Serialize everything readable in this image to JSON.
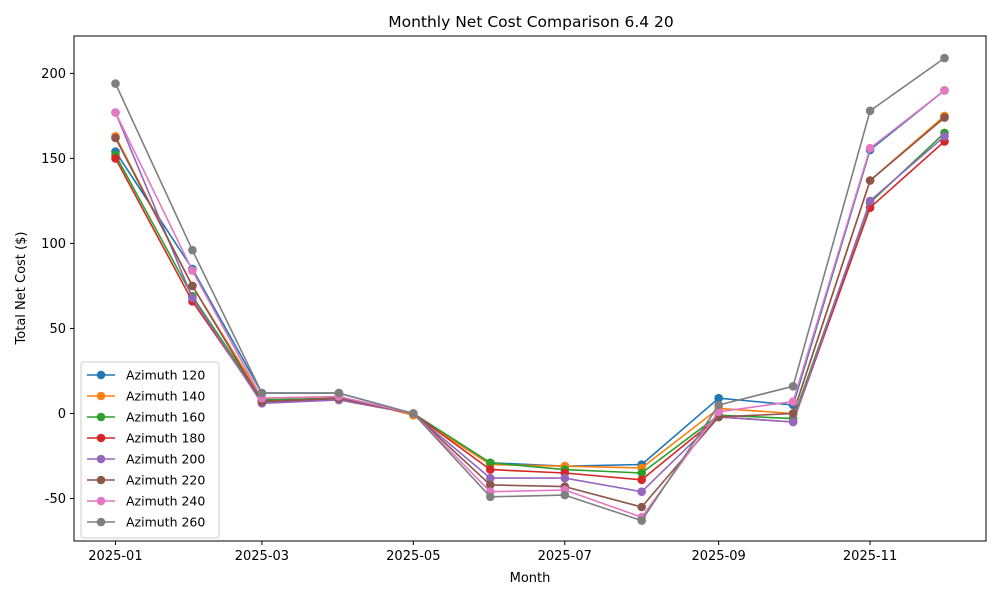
{
  "chart_data": {
    "type": "line",
    "title": "Monthly Net Cost Comparison 6.4 20",
    "xlabel": "Month",
    "ylabel": "Total Net Cost ($)",
    "x": [
      "2025-01",
      "2025-02",
      "2025-03",
      "2025-04",
      "2025-05",
      "2025-06",
      "2025-07",
      "2025-08",
      "2025-09",
      "2025-10",
      "2025-11",
      "2025-12"
    ],
    "x_tick_labels": [
      "2025-01",
      "2025-03",
      "2025-05",
      "2025-07",
      "2025-09",
      "2025-11"
    ],
    "y_ticks": [
      -50,
      0,
      50,
      100,
      150,
      200
    ],
    "ylim": [
      -75,
      222
    ],
    "grid": false,
    "legend_position": "lower-left",
    "marker": "circle",
    "series": [
      {
        "name": "Azimuth 120",
        "color": "#1f77b4",
        "values": [
          154,
          85,
          12,
          12,
          0,
          -29,
          -31,
          -30,
          9,
          5,
          155,
          190
        ]
      },
      {
        "name": "Azimuth 140",
        "color": "#ff7f0e",
        "values": [
          163,
          75,
          9,
          10,
          -1,
          -30,
          -31,
          -32,
          3,
          0,
          137,
          175
        ]
      },
      {
        "name": "Azimuth 160",
        "color": "#2ca02c",
        "values": [
          152,
          69,
          8,
          9,
          0,
          -29,
          -33,
          -35,
          -1,
          -3,
          124,
          165
        ]
      },
      {
        "name": "Azimuth 180",
        "color": "#d62728",
        "values": [
          150,
          66,
          7,
          8,
          0,
          -33,
          -35,
          -39,
          -2,
          -5,
          121,
          160
        ]
      },
      {
        "name": "Azimuth 200",
        "color": "#9467bd",
        "values": [
          177,
          68,
          6,
          8,
          0,
          -38,
          -38,
          -46,
          -2,
          -5,
          125,
          163
        ]
      },
      {
        "name": "Azimuth 220",
        "color": "#8c564b",
        "values": [
          162,
          75,
          7,
          9,
          0,
          -42,
          -43,
          -55,
          -2,
          0,
          137,
          174
        ]
      },
      {
        "name": "Azimuth 240",
        "color": "#e377c2",
        "values": [
          177,
          84,
          9,
          10,
          0,
          -46,
          -45,
          -61,
          1,
          7,
          156,
          190
        ]
      },
      {
        "name": "Azimuth 260",
        "color": "#7f7f7f",
        "values": [
          194,
          96,
          12,
          12,
          0,
          -49,
          -48,
          -63,
          5,
          16,
          178,
          209
        ]
      }
    ]
  }
}
